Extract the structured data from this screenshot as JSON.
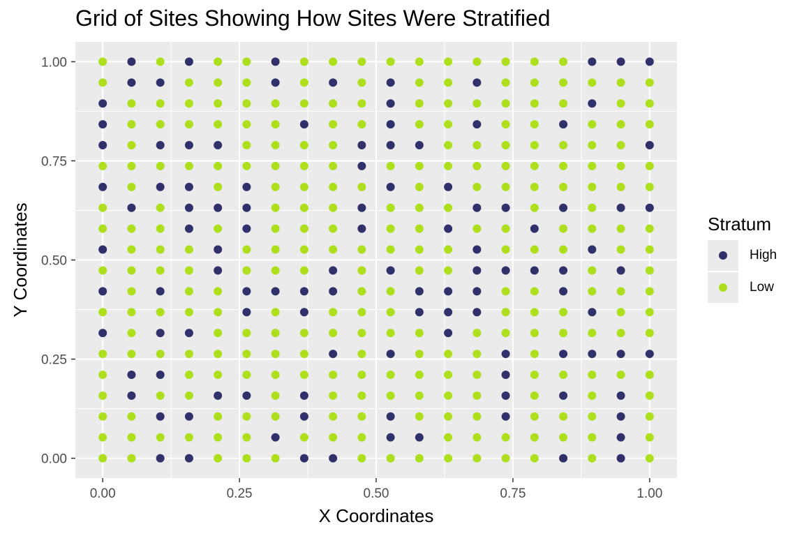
{
  "colors": {
    "panel_bg": "#ebebeb",
    "grid": "#ffffff",
    "high": "#30306b",
    "low": "#addf1d",
    "tick": "#333333"
  },
  "chart_data": {
    "type": "scatter",
    "title": "Grid of Sites Showing How Sites Were Stratified",
    "xlabel": "X Coordinates",
    "ylabel": "Y Coordinates",
    "xlim": [
      -0.05,
      1.05
    ],
    "ylim": [
      -0.05,
      1.05
    ],
    "x_ticks": [
      0,
      0.25,
      0.5,
      0.75,
      1
    ],
    "y_ticks": [
      0,
      0.25,
      0.5,
      0.75,
      1
    ],
    "x_tick_labels": [
      "0.00",
      "0.25",
      "0.50",
      "0.75",
      "1.00"
    ],
    "y_tick_labels": [
      "0.00",
      "0.25",
      "0.50",
      "0.75",
      "1.00"
    ],
    "grid": true,
    "legend": {
      "title": "Stratum",
      "position": "right",
      "entries": [
        "High",
        "Low"
      ]
    },
    "grid_points": {
      "nx": 20,
      "ny": 20,
      "x_step": "1/19",
      "y_step": "1/19"
    },
    "stratum_legend": {
      "H": "High",
      "L": "Low"
    },
    "rows_top_to_bottom": [
      "LHLHLLHLLLLLLLLLLHHH",
      "LHHLLLHLHLHLLHLLLLLL",
      "HLLLLLLLLLHLLLLLLHLL",
      "HLLLLLLHLLHLLHLLHLLL",
      "HLHHHLLLLHHHLLLLLLLH",
      "LLLLLLLLLHLLLLLLLLLL",
      "HLHHLHLLLLHLHLLLLLLL",
      "LHLHHHLLLHLLLHHLHLHH",
      "LLLHLHLLLHLLHLLHLLLL",
      "HLLLHLLLLLLLLHLLLHLL",
      "LLLLHLLLHLHLLHHHHLHL",
      "HLHLLHHHHLLHHHLLHLLL",
      "LLLLLHLHLLLHHHLLLHLL",
      "HLHHLLLLLLLLHLLLLLLL",
      "LLLLLLLLHLHLLLHLHHHH",
      "LHHLLLLLLLLLLLHLLLLL",
      "LHLLHHLHLLLLLLHLHLHL",
      "LLHHLLLHLLHLLLHLLLHL",
      "LLLLLLHLLLHHLLLLLLHL",
      "LLHHLLLHHLLLLLLLHLHL"
    ]
  }
}
